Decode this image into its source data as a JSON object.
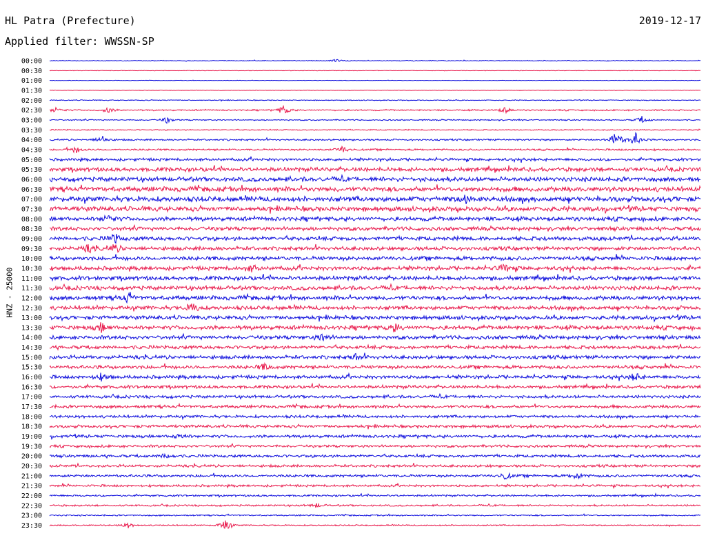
{
  "header": {
    "station": "HL Patra (Prefecture)",
    "date": "2019-12-17",
    "filter_label": "Applied filter: WWSSN-SP"
  },
  "chart_data": {
    "type": "line",
    "title": "HL Patra (Prefecture)",
    "subtitle": "Applied filter: WWSSN-SP",
    "date": "2019-12-17",
    "ylabel": "HNZ - 25000",
    "row_labels": [
      "00:00",
      "00:30",
      "01:00",
      "01:30",
      "02:00",
      "02:30",
      "03:00",
      "03:30",
      "04:00",
      "04:30",
      "05:00",
      "05:30",
      "06:00",
      "06:30",
      "07:00",
      "07:30",
      "08:00",
      "08:30",
      "09:00",
      "09:30",
      "10:00",
      "10:30",
      "11:00",
      "11:30",
      "12:00",
      "12:30",
      "13:00",
      "13:30",
      "14:00",
      "14:30",
      "15:00",
      "15:30",
      "16:00",
      "16:30",
      "17:00",
      "17:30",
      "18:00",
      "18:30",
      "19:00",
      "19:30",
      "20:00",
      "20:30",
      "21:00",
      "21:30",
      "22:00",
      "22:30",
      "23:00",
      "23:30"
    ],
    "row_colors": [
      "#0a0adc",
      "#e8174a"
    ],
    "noise_level": [
      0.4,
      0.3,
      0.25,
      0.25,
      0.5,
      0.8,
      0.7,
      0.6,
      1.0,
      1.0,
      1.6,
      2.4,
      2.6,
      2.8,
      3.0,
      2.8,
      2.4,
      2.2,
      2.3,
      2.2,
      2.3,
      2.3,
      2.4,
      2.4,
      2.4,
      2.3,
      2.3,
      2.4,
      2.2,
      2.0,
      2.1,
      2.0,
      2.0,
      1.8,
      1.7,
      1.7,
      1.6,
      1.7,
      1.7,
      1.5,
      1.6,
      1.5,
      1.5,
      1.3,
      1.1,
      1.0,
      0.8,
      0.7
    ],
    "events": [
      {
        "row": 0,
        "t": 0.44,
        "amp": 2
      },
      {
        "row": 5,
        "t": 0.01,
        "amp": 4
      },
      {
        "row": 5,
        "t": 0.09,
        "amp": 4
      },
      {
        "row": 5,
        "t": 0.36,
        "amp": 7
      },
      {
        "row": 5,
        "t": 0.7,
        "amp": 4
      },
      {
        "row": 6,
        "t": 0.18,
        "amp": 4
      },
      {
        "row": 6,
        "t": 0.91,
        "amp": 5
      },
      {
        "row": 8,
        "t": 0.08,
        "amp": 6
      },
      {
        "row": 8,
        "t": 0.87,
        "amp": 12
      },
      {
        "row": 8,
        "t": 0.9,
        "amp": 10
      },
      {
        "row": 9,
        "t": 0.04,
        "amp": 5
      },
      {
        "row": 9,
        "t": 0.45,
        "amp": 5
      },
      {
        "row": 14,
        "t": 0.64,
        "amp": 6
      },
      {
        "row": 16,
        "t": 0.09,
        "amp": 6
      },
      {
        "row": 18,
        "t": 0.1,
        "amp": 6
      },
      {
        "row": 19,
        "t": 0.06,
        "amp": 5
      },
      {
        "row": 19,
        "t": 0.1,
        "amp": 6
      },
      {
        "row": 21,
        "t": 0.31,
        "amp": 5
      },
      {
        "row": 21,
        "t": 0.7,
        "amp": 6
      },
      {
        "row": 24,
        "t": 0.12,
        "amp": 6
      },
      {
        "row": 25,
        "t": 0.22,
        "amp": 7
      },
      {
        "row": 27,
        "t": 0.08,
        "amp": 6
      },
      {
        "row": 27,
        "t": 0.53,
        "amp": 6
      },
      {
        "row": 28,
        "t": 0.42,
        "amp": 6
      },
      {
        "row": 30,
        "t": 0.47,
        "amp": 4
      },
      {
        "row": 31,
        "t": 0.33,
        "amp": 5
      },
      {
        "row": 32,
        "t": 0.08,
        "amp": 5
      },
      {
        "row": 32,
        "t": 0.9,
        "amp": 6
      },
      {
        "row": 38,
        "t": 0.2,
        "amp": 4
      },
      {
        "row": 40,
        "t": 0.18,
        "amp": 4
      },
      {
        "row": 42,
        "t": 0.7,
        "amp": 5
      },
      {
        "row": 42,
        "t": 0.81,
        "amp": 5
      },
      {
        "row": 45,
        "t": 0.41,
        "amp": 3
      },
      {
        "row": 47,
        "t": 0.12,
        "amp": 4
      },
      {
        "row": 47,
        "t": 0.27,
        "amp": 8
      }
    ]
  }
}
